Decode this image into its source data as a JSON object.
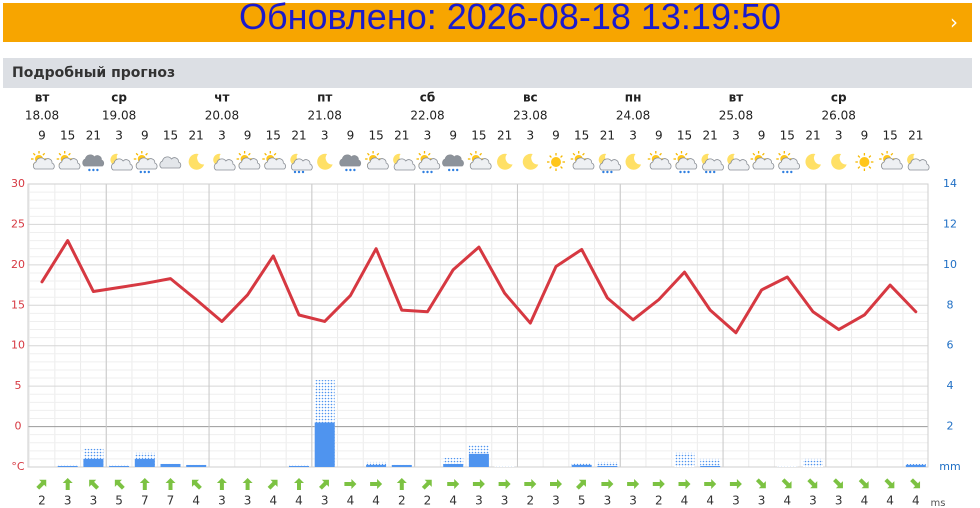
{
  "banner": {
    "text": "Обновлено: 2026-08-18 13:19:50"
  },
  "section_title": "Подробный прогноз",
  "chart_data": {
    "type": "weather",
    "days": [
      {
        "name": "вт",
        "date": "18.08"
      },
      {
        "name": "ср",
        "date": "19.08"
      },
      {
        "name": "чт",
        "date": "20.08"
      },
      {
        "name": "пт",
        "date": "21.08"
      },
      {
        "name": "сб",
        "date": "22.08"
      },
      {
        "name": "вс",
        "date": "23.08"
      },
      {
        "name": "пн",
        "date": "24.08"
      },
      {
        "name": "вт",
        "date": "25.08"
      },
      {
        "name": "ср",
        "date": "26.08"
      }
    ],
    "hours": [
      9,
      15,
      21,
      3,
      9,
      15,
      21,
      3,
      9,
      15,
      21,
      3,
      9,
      15,
      21,
      3,
      9,
      15,
      21,
      3,
      9,
      15,
      21,
      3,
      9,
      15,
      21,
      3,
      9,
      15,
      21,
      3,
      9,
      15,
      21
    ],
    "icons": [
      "pc",
      "pc",
      "rn",
      "mc",
      "pr",
      "cl",
      "mn",
      "mc",
      "pc",
      "pc",
      "mr",
      "mn",
      "rn",
      "pc",
      "mc",
      "pr",
      "rn",
      "pc",
      "mn",
      "mn",
      "sn",
      "pc",
      "mr",
      "mn",
      "pc",
      "pr",
      "mr",
      "mc",
      "pc",
      "pr",
      "mn",
      "mn",
      "sn",
      "pc",
      "mc"
    ],
    "temperature": {
      "color": "#d63841",
      "values": [
        17.9,
        23,
        16.7,
        17.2,
        17.7,
        18.3,
        15.7,
        13,
        16.3,
        21.1,
        13.8,
        13,
        16.2,
        22,
        14.4,
        14.2,
        19.4,
        22.2,
        16.5,
        12.8,
        19.8,
        21.9,
        15.9,
        13.2,
        15.7,
        19.1,
        14.4,
        11.6,
        16.9,
        18.5,
        14.2,
        12,
        13.8,
        17.5,
        14.2
      ]
    },
    "precipitation": {
      "color": "#4f94ef",
      "values": [
        null,
        0.05,
        0.4,
        0.05,
        0.4,
        0.15,
        0.1,
        null,
        null,
        null,
        0.05,
        2.2,
        null,
        0.1,
        0.1,
        null,
        0.15,
        0.65,
        null,
        null,
        null,
        0.1,
        0.05,
        null,
        null,
        null,
        0.05,
        null,
        null,
        null,
        null,
        null,
        null,
        null,
        0.1
      ],
      "max_values": [
        null,
        0.1,
        0.9,
        0.1,
        0.7,
        0.15,
        0.1,
        null,
        null,
        null,
        0.1,
        4.3,
        null,
        0.25,
        0.1,
        null,
        0.45,
        1.1,
        0.05,
        null,
        null,
        0.2,
        0.25,
        null,
        null,
        0.7,
        0.4,
        null,
        null,
        0.05,
        0.4,
        null,
        null,
        null,
        0.15
      ]
    },
    "wind": {
      "color": "#7cc242",
      "unit": "ms",
      "values": [
        2,
        3,
        3,
        5,
        7,
        7,
        4,
        3,
        3,
        4,
        4,
        3,
        4,
        4,
        2,
        2,
        4,
        3,
        3,
        2,
        3,
        5,
        3,
        3,
        2,
        4,
        4,
        3,
        3,
        4,
        3,
        3,
        4,
        4,
        4
      ],
      "direction": [
        45,
        0,
        315,
        315,
        0,
        0,
        315,
        0,
        0,
        45,
        0,
        45,
        90,
        90,
        0,
        45,
        90,
        90,
        90,
        90,
        90,
        45,
        90,
        90,
        90,
        90,
        90,
        90,
        135,
        135,
        135,
        135,
        135,
        135,
        135
      ]
    },
    "ylim": [
      -5,
      30
    ],
    "yticks": [
      {
        "value": -5,
        "label": "°C"
      },
      0,
      5,
      10,
      15,
      20,
      25,
      30
    ],
    "y2lim": [
      0,
      14
    ],
    "y2ticks": [
      {
        "value": 0,
        "label": "mm"
      },
      2,
      4,
      6,
      8,
      10,
      12,
      14
    ],
    "grid": true
  }
}
